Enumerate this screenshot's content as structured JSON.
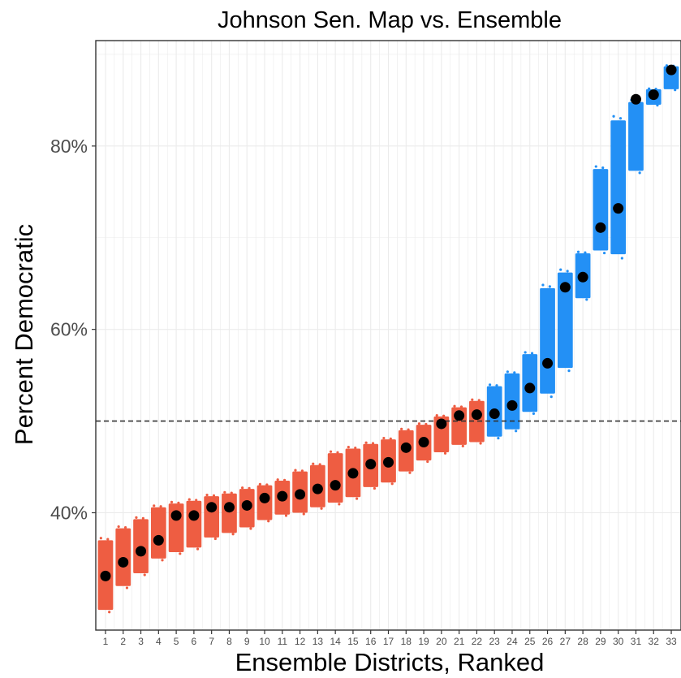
{
  "chart_data": {
    "type": "scatter",
    "title": "Johnson Sen. Map vs. Ensemble",
    "xlabel": "Ensemble Districts, Ranked",
    "ylabel": "Percent Democratic",
    "x": [
      1,
      2,
      3,
      4,
      5,
      6,
      7,
      8,
      9,
      10,
      11,
      12,
      13,
      14,
      15,
      16,
      17,
      18,
      19,
      20,
      21,
      22,
      23,
      24,
      25,
      26,
      27,
      28,
      29,
      30,
      31,
      32,
      33
    ],
    "x_tick_labels": [
      "1",
      "2",
      "3",
      "4",
      "5",
      "6",
      "7",
      "8",
      "9",
      "10",
      "11",
      "12",
      "13",
      "14",
      "15",
      "16",
      "17",
      "18",
      "19",
      "20",
      "21",
      "22",
      "23",
      "24",
      "25",
      "26",
      "27",
      "28",
      "29",
      "30",
      "31",
      "32",
      "33"
    ],
    "y_tick_labels": [
      "40%",
      "60%",
      "80%"
    ],
    "y_tick_values": [
      0.4,
      0.6,
      0.8
    ],
    "ylim": [
      0.272,
      0.915
    ],
    "xlim": [
      0.45,
      33.55
    ],
    "reference_line": 0.5,
    "grid": true,
    "colors": {
      "republican": "#ee5d42",
      "democratic": "#2390f5",
      "plan_point": "#000000",
      "reference_line": "#333333",
      "grid": "#ebebeb"
    },
    "series": [
      {
        "name": "Johnson Sen. Map",
        "values": [
          0.331,
          0.346,
          0.358,
          0.37,
          0.397,
          0.397,
          0.406,
          0.406,
          0.408,
          0.416,
          0.418,
          0.42,
          0.426,
          0.43,
          0.443,
          0.453,
          0.455,
          0.471,
          0.477,
          0.497,
          0.506,
          0.507,
          0.508,
          0.517,
          0.536,
          0.563,
          0.646,
          0.657,
          0.711,
          0.732,
          0.851,
          0.856,
          0.883
        ]
      }
    ],
    "ensemble_ranges": [
      {
        "low": 0.294,
        "high": 0.37
      },
      {
        "low": 0.32,
        "high": 0.383
      },
      {
        "low": 0.334,
        "high": 0.393
      },
      {
        "low": 0.35,
        "high": 0.406
      },
      {
        "low": 0.357,
        "high": 0.41
      },
      {
        "low": 0.362,
        "high": 0.413
      },
      {
        "low": 0.373,
        "high": 0.418
      },
      {
        "low": 0.378,
        "high": 0.421
      },
      {
        "low": 0.384,
        "high": 0.426
      },
      {
        "low": 0.392,
        "high": 0.43
      },
      {
        "low": 0.398,
        "high": 0.435
      },
      {
        "low": 0.4,
        "high": 0.445
      },
      {
        "low": 0.406,
        "high": 0.452
      },
      {
        "low": 0.411,
        "high": 0.465
      },
      {
        "low": 0.417,
        "high": 0.47
      },
      {
        "low": 0.428,
        "high": 0.475
      },
      {
        "low": 0.433,
        "high": 0.48
      },
      {
        "low": 0.445,
        "high": 0.49
      },
      {
        "low": 0.457,
        "high": 0.496
      },
      {
        "low": 0.466,
        "high": 0.505
      },
      {
        "low": 0.474,
        "high": 0.515
      },
      {
        "low": 0.477,
        "high": 0.522
      },
      {
        "low": 0.483,
        "high": 0.538
      },
      {
        "low": 0.491,
        "high": 0.552
      },
      {
        "low": 0.51,
        "high": 0.573
      },
      {
        "low": 0.53,
        "high": 0.645
      },
      {
        "low": 0.558,
        "high": 0.662
      },
      {
        "low": 0.634,
        "high": 0.683
      },
      {
        "low": 0.686,
        "high": 0.775
      },
      {
        "low": 0.682,
        "high": 0.828
      },
      {
        "low": 0.773,
        "high": 0.848
      },
      {
        "low": 0.845,
        "high": 0.862
      },
      {
        "low": 0.862,
        "high": 0.887
      }
    ]
  }
}
